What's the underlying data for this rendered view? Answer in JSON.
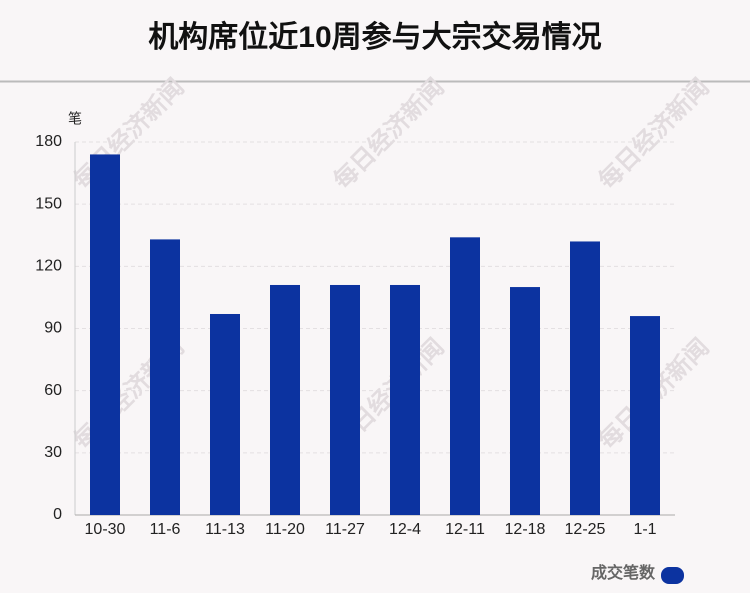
{
  "chart_data": {
    "type": "bar",
    "title": "机构席位近10周参与大宗交易情况",
    "y_label": "笔",
    "categories": [
      "10-30",
      "11-6",
      "11-13",
      "11-20",
      "11-27",
      "12-4",
      "12-11",
      "12-18",
      "12-25",
      "1-1"
    ],
    "series": [
      {
        "name": "成交笔数",
        "color": "#0c33a0",
        "values": [
          174,
          133,
          97,
          111,
          111,
          111,
          134,
          110,
          132,
          96
        ]
      }
    ],
    "ylim": [
      0,
      180
    ],
    "yticks": [
      0,
      30,
      60,
      90,
      120,
      150,
      180
    ],
    "grid": true,
    "legend": "bottom-right",
    "watermark": "每日经济新闻"
  }
}
